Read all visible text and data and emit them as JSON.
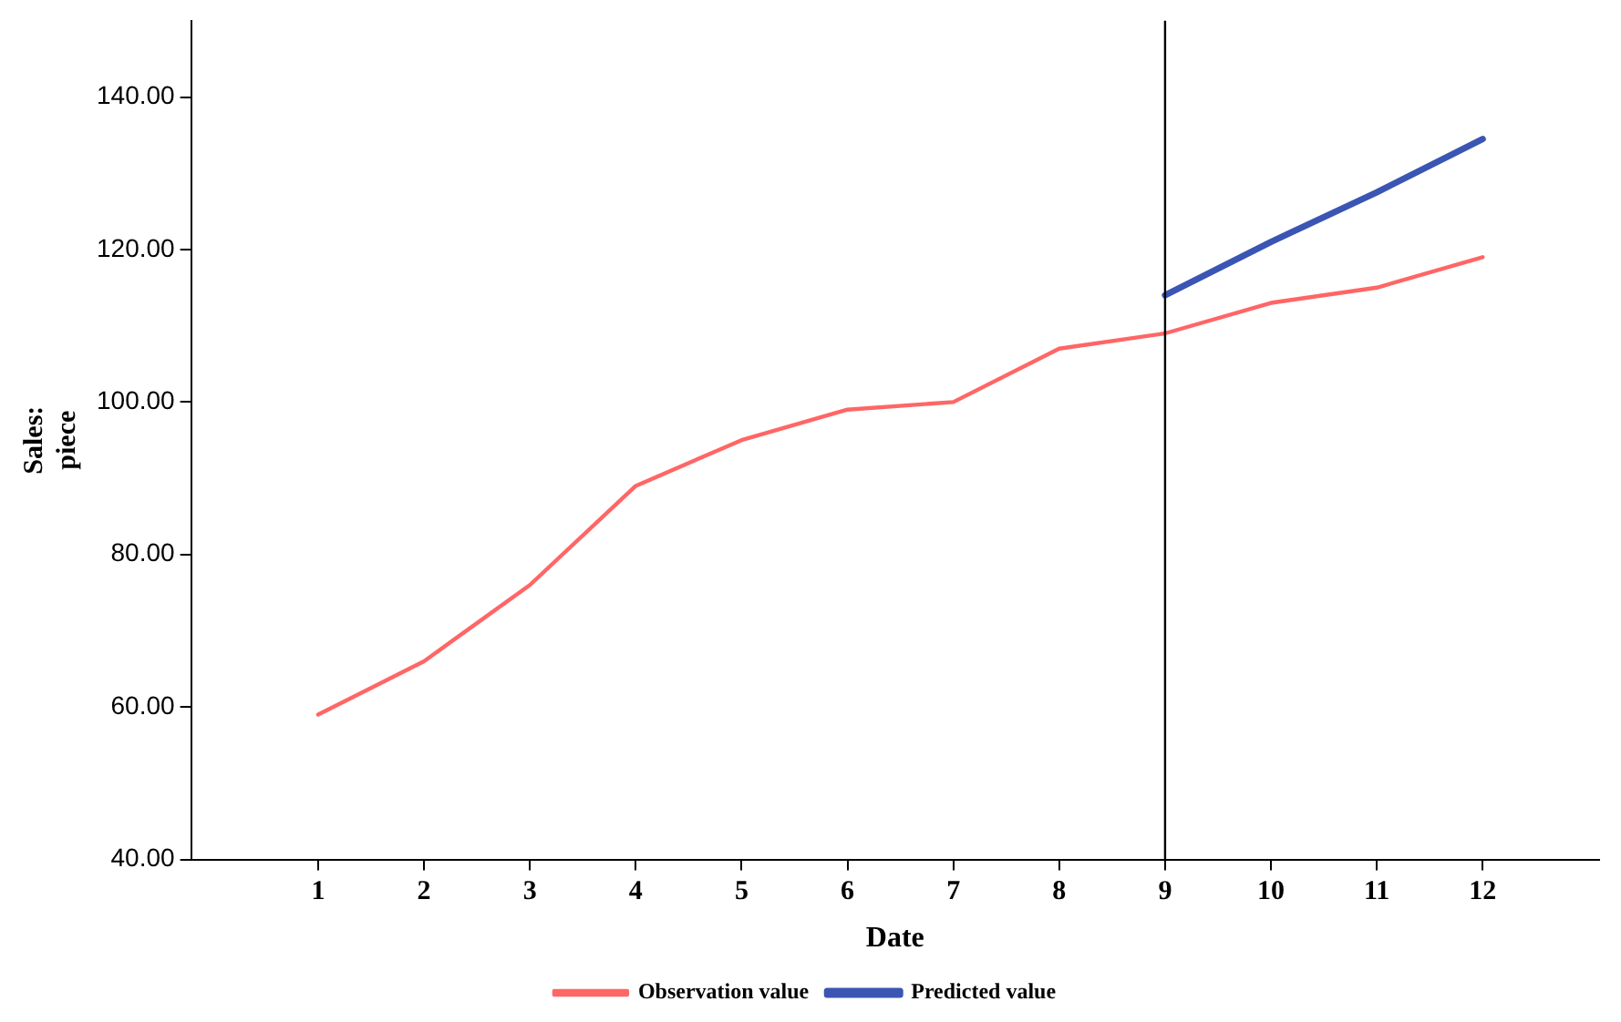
{
  "chart_data": {
    "type": "line",
    "xlabel": "Date",
    "ylabel": "Sales: piece",
    "x": [
      1,
      2,
      3,
      4,
      5,
      6,
      7,
      8,
      9,
      10,
      11,
      12
    ],
    "series": [
      {
        "name": "Observation value",
        "color": "#ff6666",
        "values": [
          59,
          66,
          76,
          89,
          95,
          99,
          100,
          107,
          109,
          113,
          115,
          119
        ]
      },
      {
        "name": "Predicted value",
        "color": "#3a55b4",
        "values": [
          null,
          null,
          null,
          null,
          null,
          null,
          null,
          null,
          114,
          121,
          127.5,
          134.5
        ]
      }
    ],
    "xlim": [
      -0.2,
      13.1
    ],
    "xticks": [
      1,
      2,
      3,
      4,
      5,
      6,
      7,
      8,
      9,
      10,
      11,
      12
    ],
    "ylim": [
      40,
      150
    ],
    "yticks": [
      {
        "value": 40,
        "label": "40.00"
      },
      {
        "value": 60,
        "label": "60.00"
      },
      {
        "value": 80,
        "label": "80.00"
      },
      {
        "value": 100,
        "label": "100.00"
      },
      {
        "value": 120,
        "label": "120.00"
      },
      {
        "value": 140,
        "label": "140.00"
      }
    ],
    "ref_lines": [
      {
        "axis": "x",
        "value": 9,
        "color": "#000000"
      }
    ],
    "grid": false,
    "legend": "bottom",
    "marker": "none",
    "line_style": "solid"
  }
}
